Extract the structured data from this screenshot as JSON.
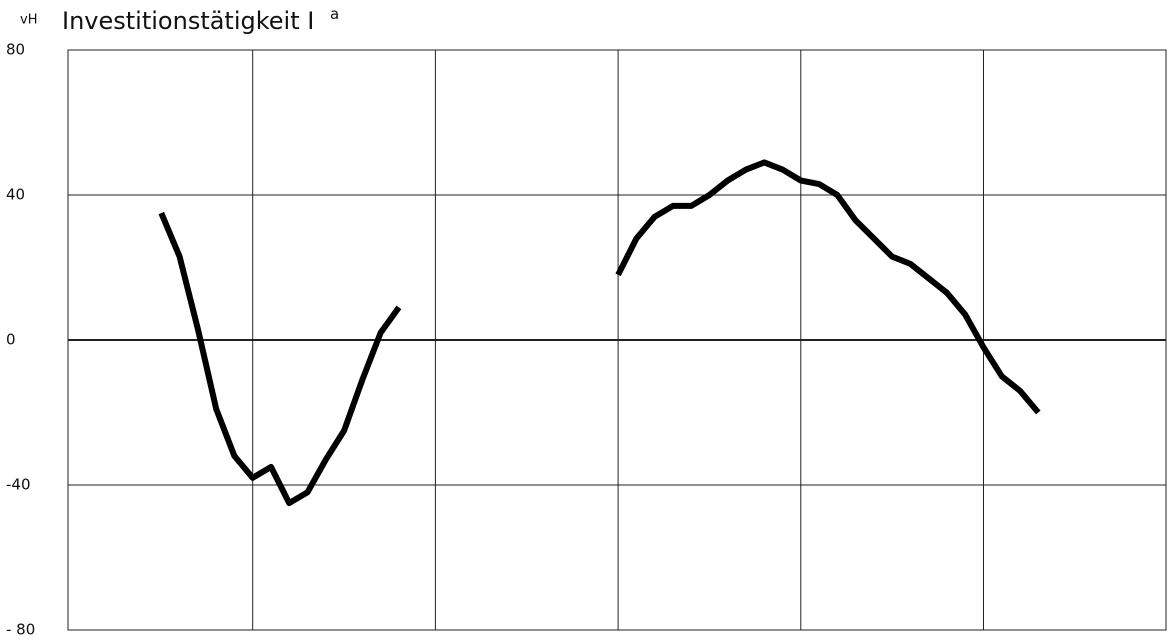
{
  "chart_data": {
    "type": "line",
    "title": "Investitionstätigkeit I",
    "title_superscript": "a",
    "y_label": "vH",
    "categories": [
      null,
      null,
      null,
      null,
      null,
      null,
      null,
      null,
      null,
      null,
      null,
      null,
      null,
      null,
      null,
      null,
      null,
      null,
      null,
      null,
      null,
      null,
      null,
      null,
      null,
      null,
      null,
      null,
      null,
      null,
      null,
      null,
      null,
      null,
      null,
      null,
      null,
      null,
      null,
      null,
      null,
      null,
      null,
      null,
      null,
      null,
      null,
      null,
      null,
      null,
      null,
      null,
      null,
      null,
      null,
      null,
      null,
      null,
      null,
      null
    ],
    "series": [
      {
        "color": "#000000",
        "values": [
          null,
          null,
          null,
          null,
          null,
          35,
          23,
          3,
          -19,
          -32,
          -38,
          -35,
          -45,
          -42,
          -33,
          -25,
          -11,
          2,
          9,
          null,
          null,
          null,
          null,
          null,
          null,
          null,
          null,
          null,
          null,
          null,
          18,
          28,
          34,
          37,
          37,
          40,
          44,
          47,
          49,
          47,
          44,
          43,
          40,
          33,
          28,
          23,
          21,
          17,
          13,
          7,
          -2,
          -10,
          -14,
          -20,
          null,
          null,
          null,
          null,
          null,
          null
        ]
      }
    ],
    "ylim": [
      -80,
      80
    ],
    "yticks": [
      {
        "value": -80,
        "label": "- 80"
      },
      -40,
      0,
      40,
      80
    ],
    "grid": true
  }
}
